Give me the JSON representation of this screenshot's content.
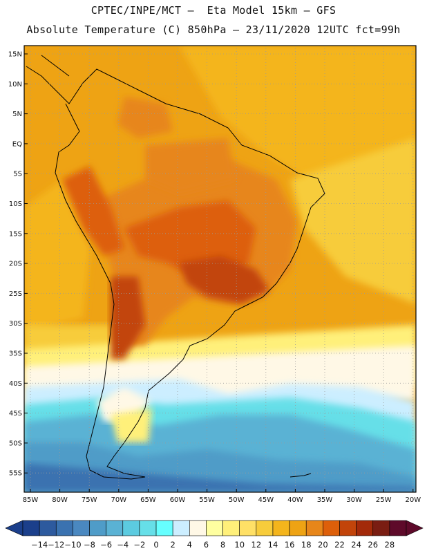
{
  "header": {
    "line1": "CPTEC/INPE/MCT –  Eta Model 15km – GFS",
    "line2": "Absolute Temperature (C) 850hPa – 23/11/2020 12UTC fct=99h"
  },
  "map": {
    "lat_labels": [
      "15N",
      "10N",
      "5N",
      "EQ",
      "5S",
      "10S",
      "15S",
      "20S",
      "25S",
      "30S",
      "35S",
      "40S",
      "45S",
      "50S",
      "55S"
    ],
    "lon_labels": [
      "85W",
      "80W",
      "75W",
      "70W",
      "65W",
      "60W",
      "55W",
      "50W",
      "45W",
      "40W",
      "35W",
      "30W",
      "25W",
      "20W"
    ],
    "grid": "dotted",
    "field": "temperature 850hPa"
  },
  "colorbar": {
    "labels": [
      "-14",
      "-12",
      "-10",
      "-8",
      "-6",
      "-4",
      "-2",
      "0",
      "2",
      "4",
      "6",
      "8",
      "10",
      "12",
      "14",
      "16",
      "18",
      "20",
      "22",
      "24",
      "26",
      "28"
    ],
    "colors": [
      "#1b3f8b",
      "#2d5a9e",
      "#3a72b0",
      "#4a88c0",
      "#4f9cc8",
      "#5ab2d4",
      "#5ccbe0",
      "#66dfe8",
      "#66ffff",
      "#cceeff",
      "#fff8e6",
      "#ffffa0",
      "#fff07a",
      "#ffe066",
      "#f7cc3b",
      "#f4b51c",
      "#eea314",
      "#e7861a",
      "#dd5f0a",
      "#c2440a",
      "#a32a0a",
      "#7a1d12",
      "#5e0a2a"
    ],
    "under_color": "#1b3f8b",
    "over_color": "#5e0a2a"
  }
}
